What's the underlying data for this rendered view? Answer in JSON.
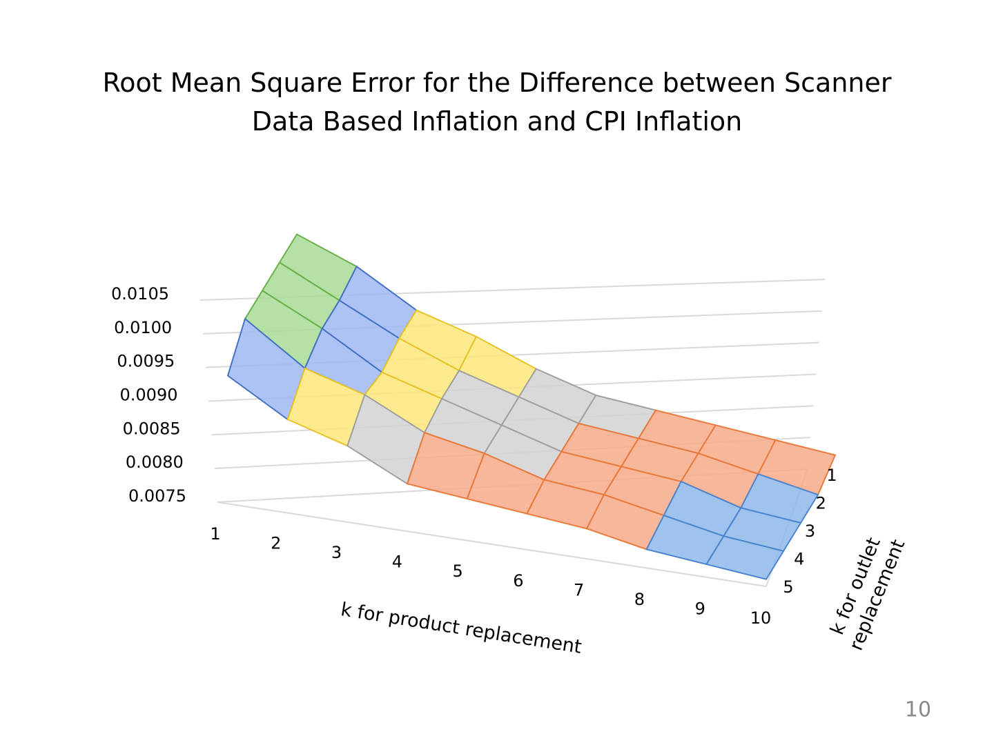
{
  "chart_data": {
    "type": "surface",
    "title": "Root Mean Square Error for the Difference between Scanner Data Based Inflation and CPI Inflation",
    "x_label": "k for product replacement",
    "depth_label": "k for outlet replacement",
    "categories": [
      1,
      2,
      3,
      4,
      5,
      6,
      7,
      8,
      9,
      10
    ],
    "series": [
      {
        "name": "1",
        "values": [
          0.0106,
          0.0102,
          0.0096,
          0.0093,
          0.0089,
          0.0086,
          0.0085,
          0.0084,
          0.0083,
          0.0082
        ]
      },
      {
        "name": "2",
        "values": [
          0.0105,
          0.01,
          0.0095,
          0.0091,
          0.0088,
          0.0085,
          0.0084,
          0.0083,
          0.0081,
          0.0079
        ]
      },
      {
        "name": "3",
        "values": [
          0.0104,
          0.0099,
          0.0093,
          0.009,
          0.0087,
          0.0084,
          0.0083,
          0.0082,
          0.0079,
          0.0078
        ]
      },
      {
        "name": "4",
        "values": [
          0.0103,
          0.0096,
          0.0093,
          0.0088,
          0.0086,
          0.0083,
          0.0082,
          0.008,
          0.0078,
          0.0077
        ]
      },
      {
        "name": "5",
        "values": [
          0.0097,
          0.0091,
          0.0088,
          0.0083,
          0.0082,
          0.0081,
          0.008,
          0.0078,
          0.0077,
          0.0076
        ]
      }
    ],
    "ylim": [
      0.0075,
      0.0105
    ],
    "yticks": [
      0.0075,
      {
        "value": 0.008,
        "label": "0.0080"
      },
      0.0085,
      {
        "value": 0.009,
        "label": "0.0090"
      },
      0.0095,
      {
        "value": 0.01,
        "label": "0.0100"
      },
      0.0105
    ],
    "band_colors": [
      "#8fb8ea",
      "#f7a98a",
      "#d2d2d2",
      "#fbe77a",
      "#9fb8f2",
      "#a8dc96"
    ],
    "band_edge_colors": [
      "#4a86d0",
      "#e87a3c",
      "#a0a0a0",
      "#e8c22a",
      "#4472c4",
      "#6ab04c"
    ],
    "grid": true
  },
  "page_number": "10"
}
